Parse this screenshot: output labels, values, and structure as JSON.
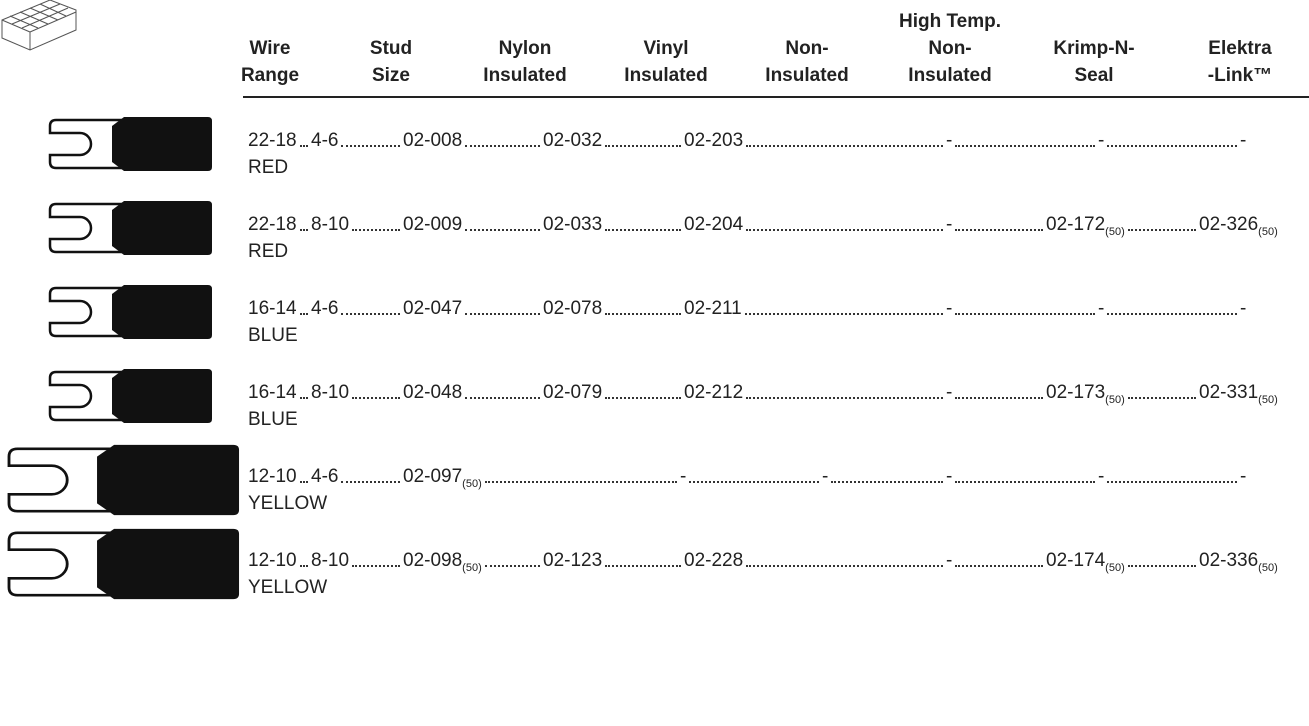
{
  "header": [
    [
      "Wire",
      "Range"
    ],
    [
      "Stud",
      "Size"
    ],
    [
      "Nylon",
      "Insulated"
    ],
    [
      "Vinyl",
      "Insulated"
    ],
    [
      "Non-",
      "Insulated"
    ],
    [
      "High Temp.",
      "Non-",
      "Insulated"
    ],
    [
      "Krimp-N-",
      "Seal"
    ],
    [
      "Elektra",
      "-Link™"
    ]
  ],
  "rows": [
    {
      "cells": [
        "22-18",
        "4-6",
        "02-008",
        "02-032",
        "02-203",
        "-",
        "-",
        "-"
      ],
      "color": "RED"
    },
    {
      "cells": [
        "22-18",
        "8-10",
        "02-009",
        "02-033",
        "02-204",
        "-",
        {
          "text": "02-172",
          "sub": "(50)"
        },
        {
          "text": "02-326",
          "sub": "(50)"
        }
      ],
      "color": "RED"
    },
    {
      "cells": [
        "16-14",
        "4-6",
        "02-047",
        "02-078",
        "02-211",
        "-",
        "-",
        "-"
      ],
      "color": "BLUE"
    },
    {
      "cells": [
        "16-14",
        "8-10",
        "02-048",
        "02-079",
        "02-212",
        "-",
        {
          "text": "02-173",
          "sub": "(50)"
        },
        {
          "text": "02-331",
          "sub": "(50)"
        }
      ],
      "color": "BLUE"
    },
    {
      "cells": [
        "12-10",
        "4-6",
        {
          "text": "02-097",
          "sub": "(50)"
        },
        "-",
        "-",
        "-",
        "-",
        "-"
      ],
      "color": "YELLOW"
    },
    {
      "cells": [
        "12-10",
        "8-10",
        {
          "text": "02-098",
          "sub": "(50)"
        },
        "02-123",
        "02-228",
        "-",
        {
          "text": "02-174",
          "sub": "(50)"
        },
        {
          "text": "02-336",
          "sub": "(50)"
        }
      ],
      "color": "YELLOW"
    }
  ]
}
